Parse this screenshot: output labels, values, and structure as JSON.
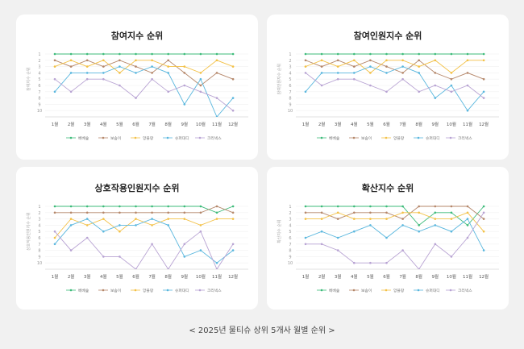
{
  "caption": "< 2025년 물티슈 상위 5개사 월별 순위 >",
  "colors": {
    "베베숲": "#3dbb7a",
    "보솜이": "#b5876a",
    "앙블랑": "#f3c146",
    "슈퍼대디": "#5ab7de",
    "크리넥스": "#b8a3d3"
  },
  "chart_data": [
    {
      "type": "line",
      "title": "참여지수 순위",
      "ylabel": "참여지수 순위",
      "ylim": [
        1,
        11
      ],
      "y_reversed": true,
      "y_ticks": [
        "1",
        "2",
        "3",
        "4",
        "5",
        "6",
        "7",
        "8",
        "9",
        "10"
      ],
      "categories": [
        "1월",
        "2월",
        "3월",
        "4월",
        "5월",
        "6월",
        "7월",
        "8월",
        "9월",
        "10월",
        "11월",
        "12월"
      ],
      "legend": "bottom",
      "grid": true,
      "series": [
        {
          "name": "베베숲",
          "values": [
            1,
            1,
            1,
            1,
            1,
            1,
            1,
            1,
            1,
            1,
            1,
            1
          ]
        },
        {
          "name": "보솜이",
          "values": [
            2,
            3,
            2,
            3,
            2,
            3,
            4,
            2,
            4,
            6,
            4,
            5
          ]
        },
        {
          "name": "앙블랑",
          "values": [
            3,
            2,
            3,
            2,
            4,
            2,
            2,
            3,
            3,
            4,
            2,
            3
          ]
        },
        {
          "name": "슈퍼대디",
          "values": [
            7,
            4,
            4,
            4,
            3,
            4,
            3,
            4,
            9,
            5,
            11,
            8
          ]
        },
        {
          "name": "크리넥스",
          "values": [
            5,
            7,
            5,
            5,
            6,
            8,
            5,
            7,
            6,
            7,
            8,
            10
          ]
        }
      ]
    },
    {
      "type": "line",
      "title": "참여인원지수 순위",
      "ylabel": "참여인원지수 순위",
      "ylim": [
        1,
        11
      ],
      "y_reversed": true,
      "y_ticks": [
        "1",
        "2",
        "3",
        "4",
        "5",
        "6",
        "7",
        "8",
        "9",
        "10"
      ],
      "categories": [
        "1월",
        "2월",
        "3월",
        "4월",
        "5월",
        "6월",
        "7월",
        "8월",
        "9월",
        "10월",
        "11월",
        "12월"
      ],
      "legend": "bottom",
      "grid": true,
      "series": [
        {
          "name": "베베숲",
          "values": [
            1,
            1,
            1,
            1,
            1,
            1,
            1,
            1,
            1,
            1,
            1,
            1
          ]
        },
        {
          "name": "보솜이",
          "values": [
            2,
            3,
            2,
            3,
            2,
            3,
            4,
            2,
            4,
            5,
            4,
            5
          ]
        },
        {
          "name": "앙블랑",
          "values": [
            3,
            2,
            3,
            2,
            4,
            2,
            2,
            3,
            2,
            4,
            2,
            2
          ]
        },
        {
          "name": "슈퍼대디",
          "values": [
            7,
            4,
            4,
            4,
            3,
            4,
            3,
            4,
            8,
            6,
            10,
            7
          ]
        },
        {
          "name": "크리넥스",
          "values": [
            4,
            6,
            5,
            5,
            6,
            7,
            5,
            7,
            6,
            7,
            6,
            8
          ]
        }
      ]
    },
    {
      "type": "line",
      "title": "상호작용인원지수 순위",
      "ylabel": "상호작용인원지수 순위",
      "ylim": [
        1,
        11
      ],
      "y_reversed": true,
      "y_ticks": [
        "1",
        "2",
        "3",
        "4",
        "5",
        "6",
        "7",
        "8",
        "9",
        "10"
      ],
      "categories": [
        "1월",
        "2월",
        "3월",
        "4월",
        "5월",
        "6월",
        "7월",
        "8월",
        "9월",
        "10월",
        "11월",
        "12월"
      ],
      "legend": "bottom",
      "grid": true,
      "series": [
        {
          "name": "베베숲",
          "values": [
            1,
            1,
            1,
            1,
            1,
            1,
            1,
            1,
            1,
            1,
            2,
            1
          ]
        },
        {
          "name": "보솜이",
          "values": [
            2,
            2,
            2,
            2,
            2,
            2,
            2,
            2,
            2,
            2,
            1,
            2
          ]
        },
        {
          "name": "앙블랑",
          "values": [
            6,
            3,
            4,
            3,
            5,
            3,
            4,
            3,
            3,
            4,
            3,
            3
          ]
        },
        {
          "name": "슈퍼대디",
          "values": [
            7,
            4,
            3,
            5,
            4,
            4,
            3,
            4,
            9,
            8,
            10,
            8
          ]
        },
        {
          "name": "크리넥스",
          "values": [
            5,
            8,
            6,
            9,
            9,
            11,
            7,
            11,
            7,
            5,
            11,
            7
          ]
        }
      ]
    },
    {
      "type": "line",
      "title": "확산지수 순위",
      "ylabel": "확산지수 순위",
      "ylim": [
        1,
        11
      ],
      "y_reversed": true,
      "y_ticks": [
        "1",
        "2",
        "3",
        "4",
        "5",
        "6",
        "7",
        "8",
        "9",
        "10"
      ],
      "categories": [
        "1월",
        "2월",
        "3월",
        "4월",
        "5월",
        "6월",
        "7월",
        "8월",
        "9월",
        "10월",
        "11월",
        "12월"
      ],
      "legend": "bottom",
      "grid": true,
      "series": [
        {
          "name": "베베숲",
          "values": [
            1,
            1,
            1,
            1,
            1,
            1,
            1,
            4,
            2,
            2,
            4,
            1
          ]
        },
        {
          "name": "보솜이",
          "values": [
            2,
            2,
            3,
            2,
            2,
            2,
            3,
            1,
            1,
            1,
            1,
            3
          ]
        },
        {
          "name": "앙블랑",
          "values": [
            3,
            3,
            2,
            3,
            3,
            3,
            2,
            2,
            3,
            3,
            2,
            5
          ]
        },
        {
          "name": "슈퍼대디",
          "values": [
            6,
            5,
            6,
            5,
            4,
            6,
            4,
            5,
            4,
            5,
            3,
            8
          ]
        },
        {
          "name": "크리넥스",
          "values": [
            7,
            7,
            8,
            10,
            10,
            10,
            8,
            11,
            7,
            9,
            6,
            2
          ]
        }
      ]
    }
  ]
}
